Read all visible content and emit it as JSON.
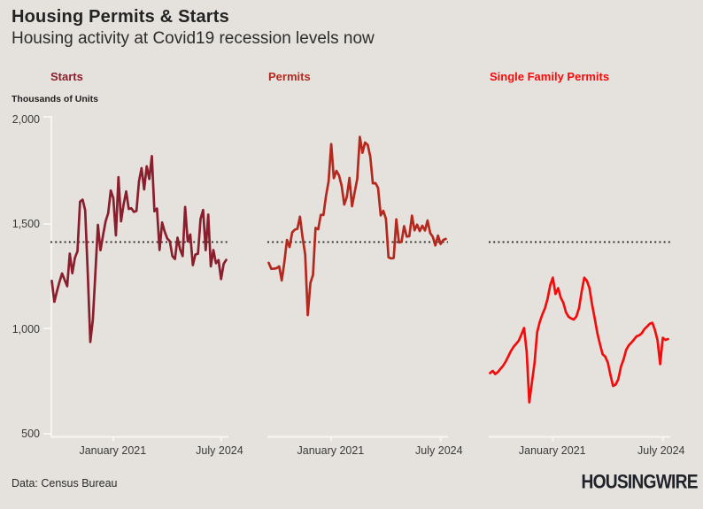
{
  "header": {
    "title": "Housing Permits & Starts",
    "subtitle": "Housing activity at Covid19 recession levels now"
  },
  "y_axis": {
    "unit_label": "Thousands of Units",
    "tick_labels": [
      "2,000",
      "1,500",
      "1,000",
      "500"
    ],
    "tick_values": [
      2000,
      1500,
      1000,
      500
    ]
  },
  "x_axis": {
    "tick_labels": [
      "January 2021",
      "July 2024"
    ]
  },
  "footer": {
    "source": "Data: Census Bureau",
    "logo": "HOUSINGWIRE"
  },
  "colors": {
    "background": "#e5e2dd",
    "title_text": "#232323",
    "axis_line": "#f7f5f1",
    "tick_text": "#3a3a3a",
    "reference_line": "#2e2e2e",
    "starts_line": "#8b1e2d",
    "permits_line": "#b5281e",
    "single_family_line": "#f40b0b"
  },
  "chart_data": {
    "type": "line",
    "title": "Housing Permits & Starts",
    "subtitle": "Housing activity at Covid19 recession levels now",
    "ylabel": "Thousands of Units",
    "ylim": [
      500,
      2000
    ],
    "y_ticks": [
      500,
      1000,
      1500,
      2000
    ],
    "grid": false,
    "x_frequency": "monthly",
    "x_start": "2019-01",
    "x_end": "2024-09",
    "x_tick_labels": [
      "January 2021",
      "July 2024"
    ],
    "x_tick_indices": [
      24,
      66
    ],
    "reference_line": {
      "value": 1415,
      "style": "dotted"
    },
    "panels": [
      {
        "name": "Starts",
        "color": "#8b1e2d",
        "values": [
          1230,
          1130,
          1180,
          1225,
          1265,
          1235,
          1204,
          1360,
          1266,
          1340,
          1371,
          1608,
          1617,
          1567,
          1269,
          938,
          1046,
          1273,
          1497,
          1376,
          1448,
          1514,
          1553,
          1661,
          1625,
          1447,
          1725,
          1514,
          1594,
          1657,
          1573,
          1576,
          1559,
          1563,
          1706,
          1768,
          1666,
          1777,
          1716,
          1825,
          1562,
          1575,
          1377,
          1508,
          1465,
          1432,
          1419,
          1348,
          1334,
          1436,
          1380,
          1348,
          1583,
          1418,
          1451,
          1305,
          1356,
          1359,
          1525,
          1568,
          1376,
          1546,
          1299,
          1377,
          1314,
          1329,
          1238,
          1311,
          1330
        ]
      },
      {
        "name": "Permits",
        "color": "#b5281e",
        "values": [
          1316,
          1287,
          1288,
          1290,
          1299,
          1232,
          1317,
          1425,
          1391,
          1461,
          1474,
          1478,
          1536,
          1438,
          1356,
          1066,
          1220,
          1258,
          1483,
          1476,
          1545,
          1544,
          1635,
          1704,
          1883,
          1720,
          1755,
          1733,
          1683,
          1594,
          1630,
          1721,
          1586,
          1653,
          1717,
          1917,
          1841,
          1890,
          1879,
          1823,
          1695,
          1696,
          1674,
          1542,
          1564,
          1526,
          1342,
          1337,
          1339,
          1524,
          1413,
          1416,
          1491,
          1441,
          1443,
          1541,
          1471,
          1498,
          1467,
          1493,
          1470,
          1518,
          1458,
          1440,
          1399,
          1446,
          1406,
          1425,
          1430
        ]
      },
      {
        "name": "Single Family Permits",
        "color": "#f40b0b",
        "values": [
          790,
          800,
          785,
          795,
          810,
          825,
          845,
          870,
          895,
          915,
          930,
          945,
          975,
          1005,
          890,
          650,
          745,
          840,
          985,
          1035,
          1070,
          1100,
          1145,
          1210,
          1245,
          1167,
          1195,
          1150,
          1125,
          1080,
          1058,
          1050,
          1045,
          1060,
          1100,
          1180,
          1245,
          1230,
          1195,
          1115,
          1050,
          980,
          928,
          880,
          868,
          840,
          780,
          728,
          735,
          760,
          820,
          855,
          900,
          922,
          935,
          950,
          965,
          970,
          980,
          1000,
          1012,
          1025,
          1030,
          995,
          945,
          832,
          958,
          948,
          952
        ]
      }
    ]
  }
}
